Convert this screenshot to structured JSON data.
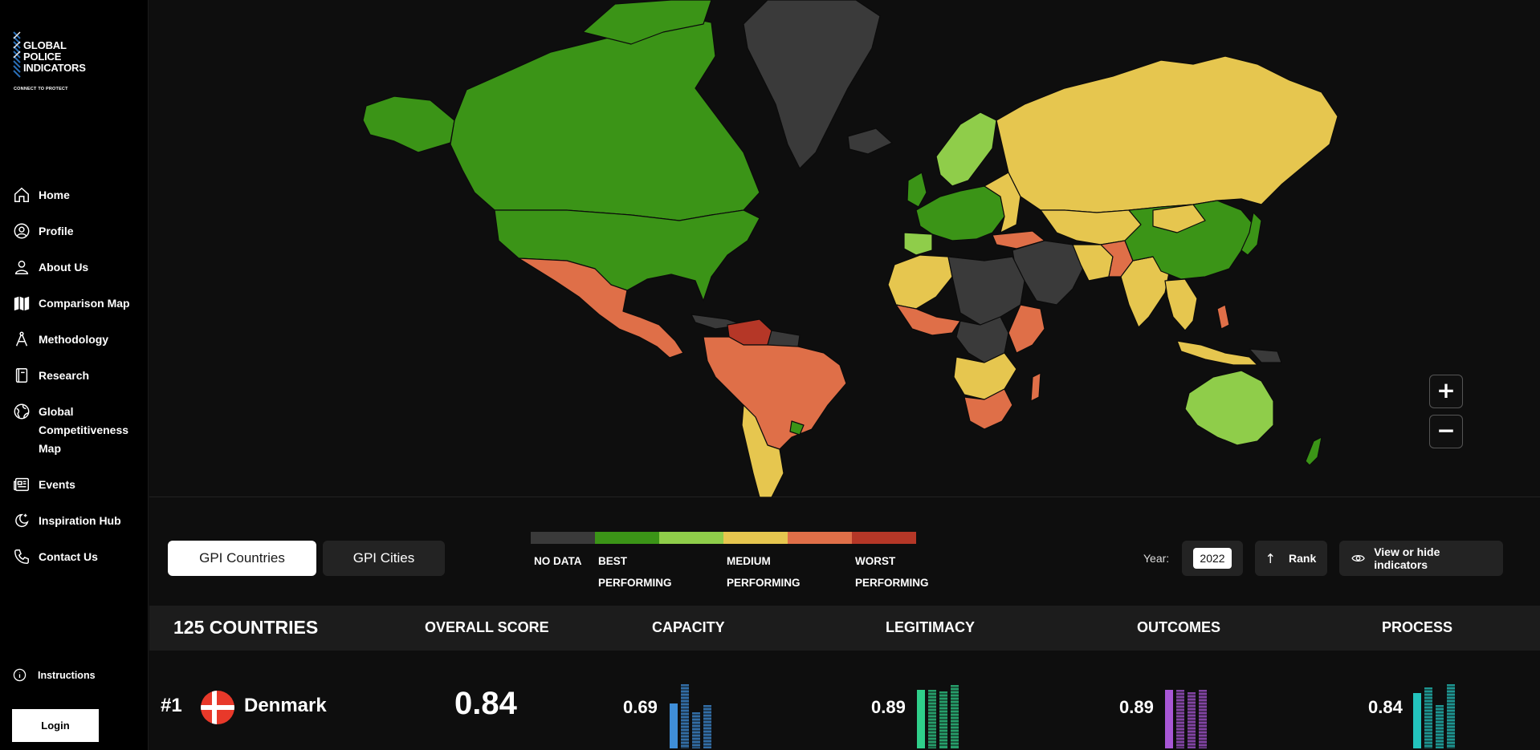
{
  "logo": {
    "line1": "GLOBAL",
    "line2": "POLICE",
    "line3": "INDICATORS",
    "tagline": "CONNECT TO PROTECT"
  },
  "nav": [
    {
      "label": "Home",
      "icon": "home-icon"
    },
    {
      "label": "Profile",
      "icon": "user-circle-icon"
    },
    {
      "label": "About Us",
      "icon": "user-icon"
    },
    {
      "label": "Comparison Map",
      "icon": "map-icon"
    },
    {
      "label": "Methodology",
      "icon": "compass-icon"
    },
    {
      "label": "Research",
      "icon": "book-icon"
    },
    {
      "label": "Global Competitiveness Map",
      "icon": "globe-icon"
    },
    {
      "label": "Events",
      "icon": "newspaper-icon"
    },
    {
      "label": "Inspiration Hub",
      "icon": "moon-star-icon"
    },
    {
      "label": "Contact Us",
      "icon": "phone-icon"
    }
  ],
  "instructions": "Instructions",
  "login": "Login",
  "map": {
    "zoom_in": "+",
    "zoom_out": "−",
    "colors": {
      "nodata": "#3a3a3a",
      "best": "#3b9417",
      "good": "#8fcd4a",
      "medium": "#e6c64f",
      "poor": "#df6f48",
      "worst": "#b53727",
      "ocean": "#0e0e0e"
    }
  },
  "toggles": {
    "countries": "GPI Countries",
    "cities": "GPI Cities"
  },
  "legend": {
    "colors": [
      "#3a3a3a",
      "#3b9417",
      "#8fcd4a",
      "#e6c64f",
      "#df6f48",
      "#b53727"
    ],
    "nodata": "NO DATA",
    "best_1": "BEST",
    "best_2": "PERFORMING",
    "medium_1": "MEDIUM",
    "medium_2": "PERFORMING",
    "worst_1": "WORST",
    "worst_2": "PERFORMING"
  },
  "year": {
    "label": "Year:",
    "value": "2022"
  },
  "rank_button": "Rank",
  "indicators_button": "View or hide indicators",
  "table": {
    "count": "125 COUNTRIES",
    "headers": [
      "OVERALL SCORE",
      "CAPACITY",
      "LEGITIMACY",
      "OUTCOMES",
      "PROCESS"
    ],
    "rows": [
      {
        "rank": "#1",
        "country": "Denmark",
        "overall": "0.84",
        "capacity": "0.69",
        "legitimacy": "0.89",
        "outcomes": "0.89",
        "process": "0.84",
        "capacity_bars": [
          0.69,
          0.98,
          0.55,
          0.66
        ],
        "legitimacy_bars": [
          0.89,
          0.89,
          0.87,
          0.97
        ],
        "outcomes_bars": [
          0.89,
          0.89,
          0.86,
          0.9
        ],
        "process_bars": [
          0.84,
          0.93,
          0.66,
          0.98
        ],
        "capacity_color": "#3f8ed8",
        "legitimacy_color": "#2fcf8a",
        "outcomes_color": "#a857d6",
        "process_color": "#23c3bd"
      }
    ]
  }
}
